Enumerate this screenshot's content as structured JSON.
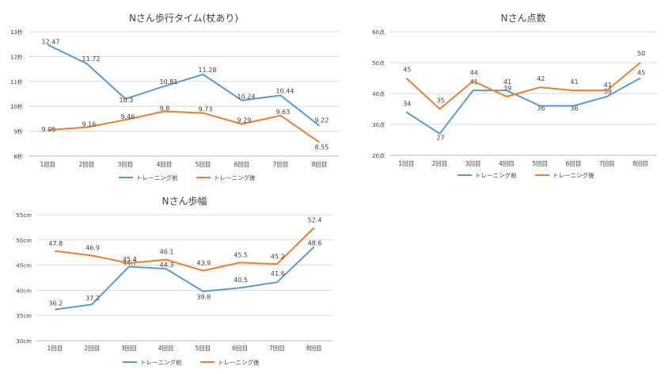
{
  "colors": {
    "before": "#5B9BD5",
    "after": "#ED7D31",
    "grid": "#D9D9D9",
    "axis": "#BFBFBF",
    "text": "#404040"
  },
  "chart_data": [
    {
      "id": "time",
      "type": "line",
      "title": "Nさん歩行タイム(杖あり)",
      "categories": [
        "1回目",
        "2回目",
        "3回目",
        "4回目",
        "5回目",
        "6回目",
        "7回目",
        "8回目"
      ],
      "yticks": [
        "8秒",
        "9秒",
        "10秒",
        "11秒",
        "12秒",
        "13秒"
      ],
      "ylim": [
        8,
        13
      ],
      "ystep": 1,
      "series": [
        {
          "name": "トレーニング前",
          "color": "#5B9BD5",
          "values": [
            12.47,
            11.72,
            10.3,
            10.81,
            11.28,
            10.24,
            10.44,
            9.22
          ],
          "labels": [
            "12.47",
            "11.72",
            "10.3",
            "10.81",
            "11.28",
            "10.24",
            "10.44",
            "9.22"
          ]
        },
        {
          "name": "トレーニング後",
          "color": "#ED7D31",
          "values": [
            9.05,
            9.16,
            9.46,
            9.8,
            9.73,
            9.29,
            9.63,
            8.55
          ],
          "labels": [
            "9.05",
            "9.16",
            "9.46",
            "9.8",
            "9.73",
            "9.29",
            "9.63",
            "8.55"
          ]
        }
      ],
      "legend_position": "bottom"
    },
    {
      "id": "score",
      "type": "line",
      "title": "Nさん点数",
      "categories": [
        "1回目",
        "2回目",
        "3回目",
        "4回目",
        "5回目",
        "6回目",
        "7回目",
        "8回目"
      ],
      "yticks": [
        "20点",
        "30点",
        "40点",
        "50点",
        "60点"
      ],
      "ylim": [
        20,
        60
      ],
      "ystep": 10,
      "series": [
        {
          "name": "トレーニング前",
          "color": "#5B9BD5",
          "values": [
            34,
            27,
            41,
            41,
            36,
            36,
            39,
            45
          ],
          "labels": [
            "34",
            "27",
            "41",
            "41",
            "36",
            "36",
            "39",
            "45"
          ]
        },
        {
          "name": "トレーニング後",
          "color": "#ED7D31",
          "values": [
            45,
            35,
            44,
            39,
            42,
            41,
            41,
            50
          ],
          "labels": [
            "45",
            "35",
            "44",
            "39",
            "42",
            "41",
            "41",
            "50"
          ]
        }
      ],
      "legend_position": "bottom"
    },
    {
      "id": "stride",
      "type": "line",
      "title": "Nさん歩幅",
      "categories": [
        "1回目",
        "2回目",
        "3回目",
        "4回目",
        "5回目",
        "6回目",
        "7回目",
        "8回目"
      ],
      "yticks": [
        "30cm",
        "35cm",
        "40cm",
        "45cm",
        "50cm",
        "55cm"
      ],
      "ylim": [
        30,
        55
      ],
      "ystep": 5,
      "series": [
        {
          "name": "トレーニング前",
          "color": "#5B9BD5",
          "values": [
            36.2,
            37.2,
            44.7,
            44.3,
            39.8,
            40.5,
            41.6,
            48.6
          ],
          "labels": [
            "36.2",
            "37.2",
            "44.7",
            "44.3",
            "39.8",
            "40.5",
            "41.6",
            "48.6"
          ]
        },
        {
          "name": "トレーニング後",
          "color": "#ED7D31",
          "values": [
            47.8,
            46.9,
            45.4,
            46.1,
            43.9,
            45.5,
            45.2,
            52.4
          ],
          "labels": [
            "47.8",
            "46.9",
            "45.4",
            "46.1",
            "43.9",
            "45.5",
            "45.2",
            "52.4"
          ]
        }
      ],
      "legend_position": "bottom"
    }
  ]
}
